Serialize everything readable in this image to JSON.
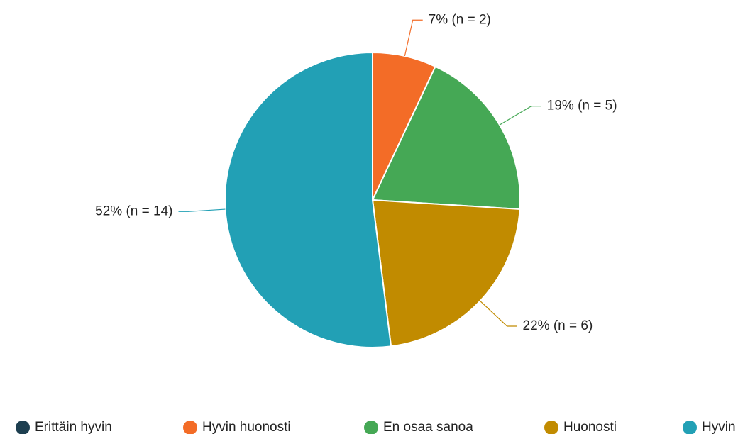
{
  "chart_data": {
    "type": "pie",
    "categories": [
      "Erittäin hyvin",
      "Hyvin huonosti",
      "En osaa sanoa",
      "Huonosti",
      "Hyvin"
    ],
    "values": [
      0,
      7,
      19,
      22,
      52
    ],
    "value_labels": [
      null,
      "7% (n = 2)",
      "19% (n = 5)",
      "22% (n = 6)",
      "52% (n = 14)"
    ],
    "colors": [
      "#1d3f50",
      "#f36c27",
      "#45a855",
      "#c18b00",
      "#22a0b5"
    ],
    "legend": "bottom"
  }
}
